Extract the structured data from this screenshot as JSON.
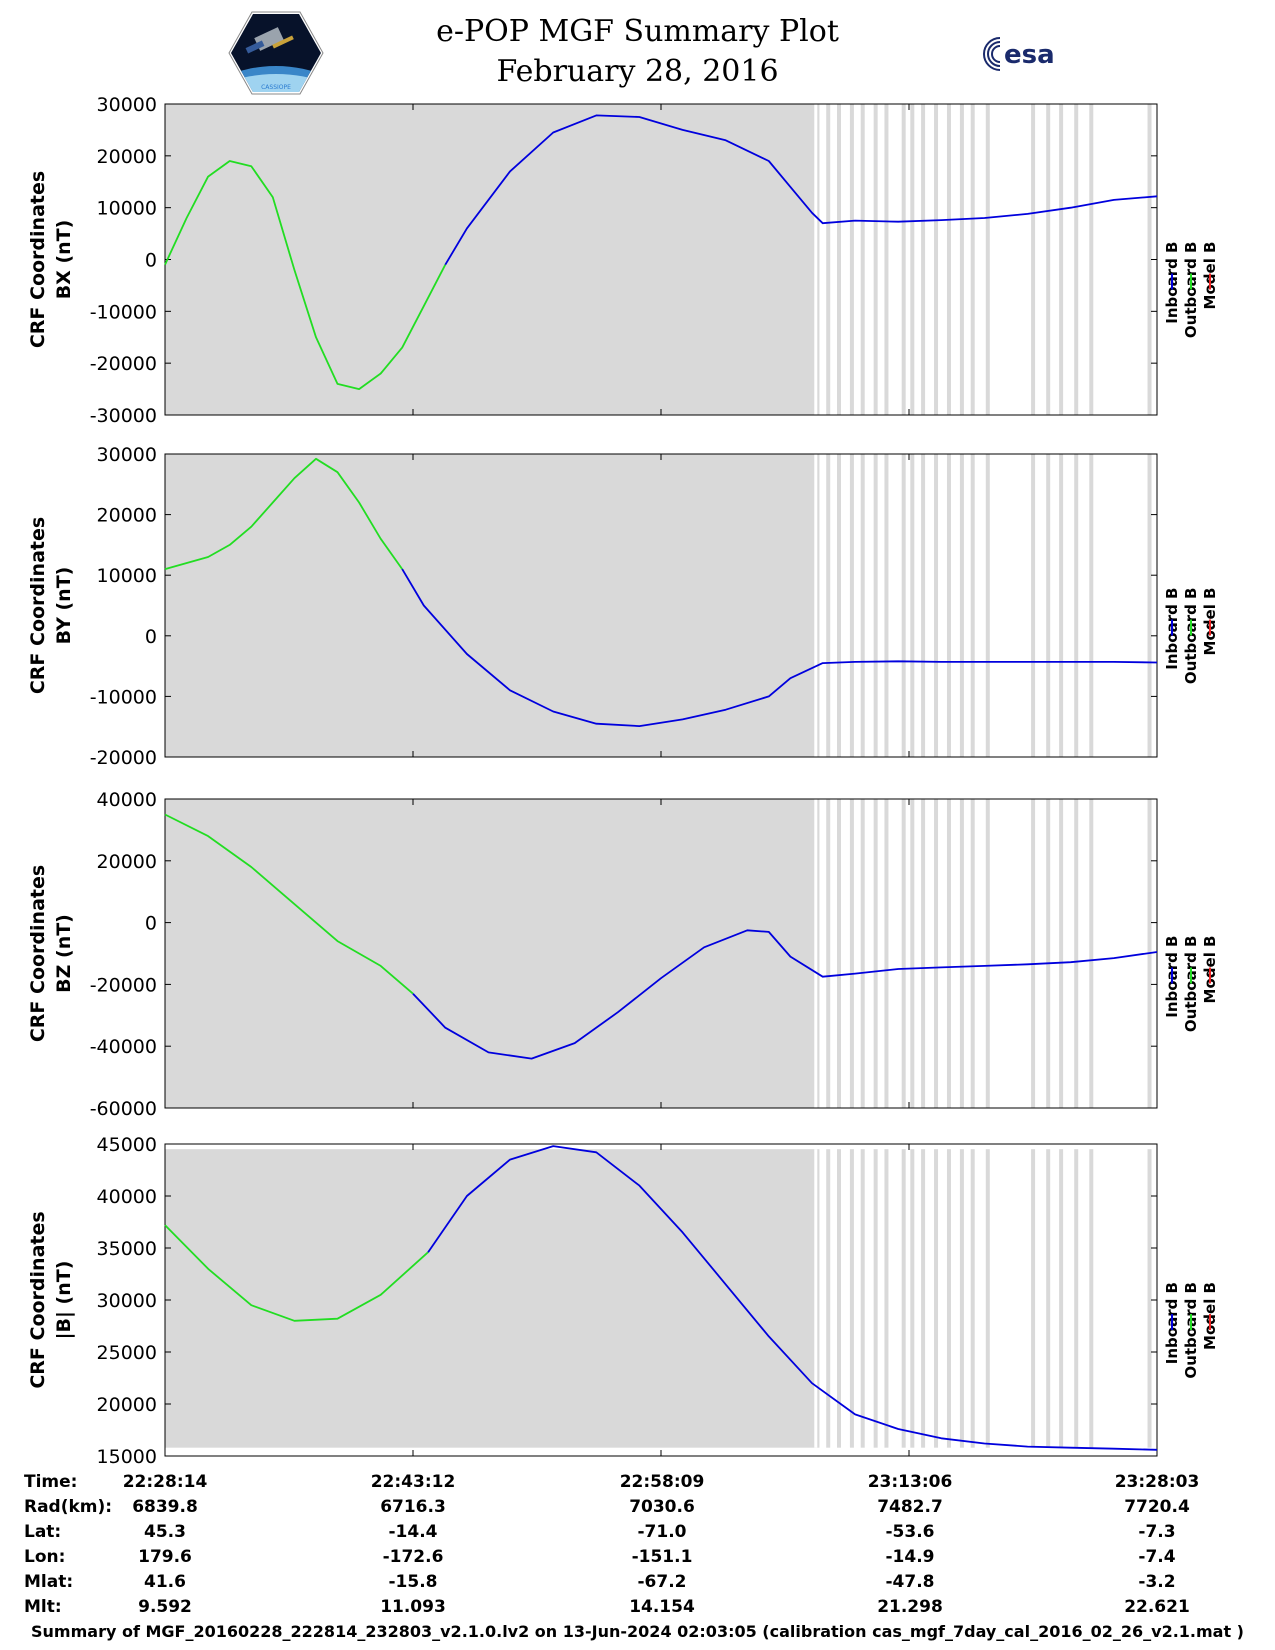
{
  "header": {
    "title_line1": "e-POP MGF Summary Plot",
    "title_line2": "February 28, 2016",
    "left_logo": "cassiope-mission-logo",
    "left_logo_text": "CASSIOPE",
    "right_logo_text": "esa"
  },
  "colors": {
    "inboard": "#0000dd",
    "outboard": "#22dd22",
    "model": "#ee2222",
    "background": "#d9d9d9",
    "gap": "#ffffff"
  },
  "chart_data": [
    {
      "type": "line",
      "ylabel_line1": "CRF Coordinates",
      "ylabel_line2": "BX (nT)",
      "ylim": [
        -30000,
        30000
      ],
      "yticks": [
        30000,
        20000,
        10000,
        0,
        -10000,
        -20000,
        -30000
      ],
      "legend": [
        "Inboard B",
        "Outboard B",
        "Model B"
      ],
      "series": [
        {
          "name": "Outboard B",
          "x": [
            0,
            1,
            2,
            3,
            4,
            5,
            6,
            7,
            8,
            9,
            10,
            11,
            12,
            13
          ],
          "values": [
            -1000,
            8000,
            16000,
            19000,
            18000,
            12000,
            -2000,
            -15000,
            -24000,
            -25000,
            -22000,
            -17000,
            -9000,
            -1000
          ]
        },
        {
          "name": "Inboard B",
          "x": [
            13,
            14,
            16,
            18,
            20,
            22,
            24,
            26,
            28,
            29,
            30,
            30.5,
            32,
            34,
            36,
            38,
            40,
            42,
            44,
            46
          ],
          "values": [
            -1000,
            6000,
            17000,
            24500,
            27800,
            27500,
            25000,
            23000,
            19000,
            14000,
            9000,
            7000,
            7500,
            7300,
            7600,
            8000,
            8800,
            10000,
            11500,
            12200
          ]
        }
      ]
    },
    {
      "type": "line",
      "ylabel_line1": "CRF Coordinates",
      "ylabel_line2": "BY (nT)",
      "ylim": [
        -20000,
        30000
      ],
      "yticks": [
        30000,
        20000,
        10000,
        0,
        -10000,
        -20000
      ],
      "legend": [
        "Inboard B",
        "Outboard B",
        "Model B"
      ],
      "series": [
        {
          "name": "Outboard B",
          "x": [
            0,
            2,
            3,
            4,
            5,
            6,
            7,
            8,
            9,
            10,
            11
          ],
          "values": [
            11000,
            13000,
            15000,
            18000,
            22000,
            26000,
            29200,
            27000,
            22000,
            16000,
            11000
          ]
        },
        {
          "name": "Inboard B",
          "x": [
            11,
            12,
            14,
            16,
            18,
            20,
            22,
            24,
            26,
            28,
            29,
            30.5,
            32,
            34,
            36,
            38,
            40,
            42,
            44,
            46
          ],
          "values": [
            11000,
            5000,
            -3000,
            -9000,
            -12500,
            -14500,
            -14900,
            -13800,
            -12200,
            -10000,
            -7000,
            -4500,
            -4300,
            -4200,
            -4300,
            -4300,
            -4300,
            -4300,
            -4300,
            -4400
          ]
        }
      ]
    },
    {
      "type": "line",
      "ylabel_line1": "CRF Coordinates",
      "ylabel_line2": "BZ (nT)",
      "ylim": [
        -60000,
        40000
      ],
      "yticks": [
        40000,
        20000,
        0,
        -20000,
        -40000,
        -60000
      ],
      "legend": [
        "Inboard B",
        "Outboard B",
        "Model B"
      ],
      "series": [
        {
          "name": "Outboard B",
          "x": [
            0,
            2,
            4,
            6,
            8,
            10,
            11.5
          ],
          "values": [
            35000,
            28000,
            18000,
            6000,
            -6000,
            -14000,
            -23000
          ]
        },
        {
          "name": "Inboard B",
          "x": [
            11.5,
            13,
            15,
            17,
            19,
            21,
            23,
            25,
            27,
            28,
            29,
            30.5,
            32,
            34,
            36,
            38,
            40,
            42,
            44,
            46
          ],
          "values": [
            -23000,
            -34000,
            -42000,
            -44000,
            -39000,
            -29000,
            -18000,
            -8000,
            -2500,
            -3000,
            -11000,
            -17500,
            -16500,
            -15000,
            -14500,
            -14000,
            -13500,
            -12800,
            -11500,
            -9500
          ]
        }
      ]
    },
    {
      "type": "line",
      "ylabel_line1": "CRF Coordinates",
      "ylabel_line2": "|B| (nT)",
      "ylim": [
        15000,
        45000
      ],
      "yticks": [
        45000,
        40000,
        35000,
        30000,
        25000,
        20000,
        15000
      ],
      "legend": [
        "Inboard B",
        "Outboard B",
        "Model B"
      ],
      "series": [
        {
          "name": "Outboard B",
          "x": [
            0,
            2,
            4,
            6,
            8,
            10,
            12.2
          ],
          "values": [
            37200,
            33000,
            29500,
            28000,
            28200,
            30500,
            34600
          ]
        },
        {
          "name": "Inboard B",
          "x": [
            12.2,
            14,
            16,
            18,
            20,
            22,
            24,
            26,
            28,
            30,
            32,
            34,
            36,
            38,
            40,
            42,
            44,
            46
          ],
          "values": [
            34600,
            40000,
            43500,
            44800,
            44200,
            41000,
            36500,
            31500,
            26500,
            22000,
            19000,
            17600,
            16700,
            16200,
            15900,
            15800,
            15700,
            15600
          ]
        }
      ]
    }
  ],
  "data_gaps_x": [
    30.3,
    30.8,
    31.3,
    31.9,
    32.4,
    33.0,
    33.5,
    34.3,
    34.7,
    35.2,
    35.8,
    36.4,
    37.0,
    37.5,
    38.2,
    40.3,
    41.0,
    41.6,
    42.3,
    43.0,
    45.7
  ],
  "x_axis": {
    "xlim": [
      0,
      46
    ],
    "ticks": [
      0,
      11.5,
      23,
      34.5,
      46
    ]
  },
  "orbit_table": {
    "row_labels": [
      "Time:",
      "Rad(km):",
      "Lat:",
      "Lon:",
      "Mlat:",
      "Mlt:"
    ],
    "columns": [
      [
        "22:28:14",
        "6839.8",
        "45.3",
        "179.6",
        "41.6",
        "9.592"
      ],
      [
        "22:43:12",
        "6716.3",
        "-14.4",
        "-172.6",
        "-15.8",
        "11.093"
      ],
      [
        "22:58:09",
        "7030.6",
        "-71.0",
        "-151.1",
        "-67.2",
        "14.154"
      ],
      [
        "23:13:06",
        "7482.7",
        "-53.6",
        "-14.9",
        "-47.8",
        "21.298"
      ],
      [
        "23:28:03",
        "7720.4",
        "-7.3",
        "-7.4",
        "-3.2",
        "22.621"
      ]
    ]
  },
  "footer": {
    "text": "Summary of MGF_20160228_222814_232803_v2.1.0.lv2 on 13-Jun-2024 02:03:05 (calibration cas_mgf_7day_cal_2016_02_26_v2.1.mat )"
  }
}
